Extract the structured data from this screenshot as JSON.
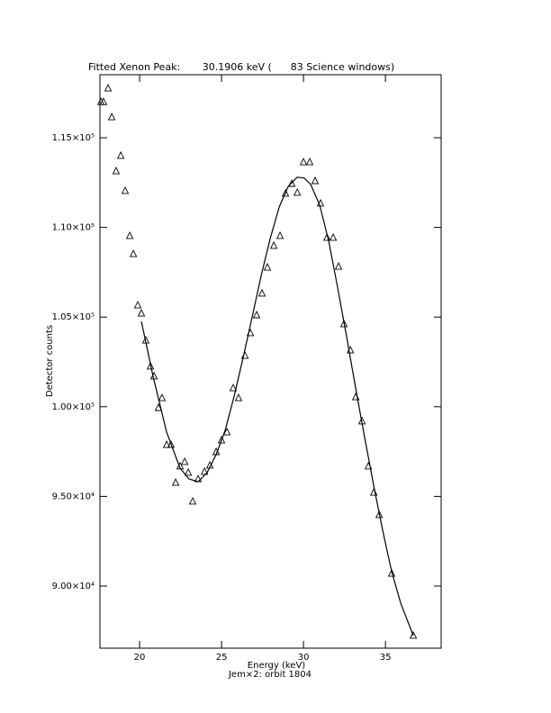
{
  "chart_data": {
    "type": "scatter",
    "title": "Fitted Xenon Peak:       30.1906 keV (      83 Science windows)",
    "x_label": "Energy (keV)",
    "subtitle": "Jem×2: orbit 1804",
    "y_label": "Detector counts",
    "xlim": [
      17.58,
      38.4
    ],
    "ylim": [
      86536,
      118514
    ],
    "xticks": [
      20,
      25,
      30,
      35
    ],
    "yticks": [
      {
        "value": 90000,
        "label": "9.00×10⁴"
      },
      {
        "value": 95000,
        "label": "9.50×10⁴"
      },
      {
        "value": 100000,
        "label": "1.00×10⁵"
      },
      {
        "value": 105000,
        "label": "1.05×10⁵"
      },
      {
        "value": 110000,
        "label": "1.10×10⁵"
      },
      {
        "value": 115000,
        "label": "1.15×10⁵"
      }
    ],
    "color": "#000000",
    "series": [
      {
        "style": "markers",
        "x": [
          17.64,
          17.8,
          18.08,
          18.3,
          18.57,
          18.85,
          19.12,
          19.4,
          19.62,
          19.89,
          20.11,
          20.38,
          20.66,
          20.88,
          21.15,
          21.37,
          21.65,
          21.92,
          22.2,
          22.47,
          22.75,
          22.97,
          23.24,
          23.57,
          23.96,
          24.29,
          24.67,
          25.0,
          25.33,
          25.71,
          26.04,
          26.43,
          26.76,
          27.14,
          27.47,
          27.8,
          28.19,
          28.57,
          28.9,
          29.29,
          29.62,
          30.0,
          30.38,
          30.71,
          31.04,
          31.43,
          31.81,
          32.14,
          32.47,
          32.86,
          33.19,
          33.57,
          33.96,
          34.29,
          34.62,
          35.38,
          36.7
        ],
        "values": [
          117000,
          117000,
          117760,
          116150,
          113140,
          114000,
          112040,
          109530,
          108520,
          105660,
          105210,
          103700,
          102250,
          101700,
          99940,
          100490,
          97880,
          97880,
          95770,
          96680,
          96930,
          96330,
          94720,
          95970,
          96380,
          96730,
          97480,
          98130,
          98580,
          101040,
          100490,
          102850,
          104110,
          105110,
          106320,
          107770,
          108980,
          109530,
          111890,
          112440,
          111940,
          113640,
          113640,
          112590,
          111340,
          109430,
          109430,
          107820,
          104610,
          103150,
          100540,
          99190,
          96680,
          95220,
          93970,
          90700,
          87240
        ]
      },
      {
        "style": "line",
        "x": [
          20.11,
          20.82,
          21.65,
          22.47,
          23.02,
          23.57,
          24.12,
          24.67,
          25.22,
          25.77,
          26.32,
          26.87,
          27.42,
          27.97,
          28.52,
          29.07,
          29.62,
          30.05,
          30.44,
          30.99,
          31.54,
          32.09,
          32.64,
          33.19,
          33.74,
          34.29,
          34.84,
          35.38,
          35.93,
          36.7
        ],
        "values": [
          104760,
          101700,
          98580,
          96570,
          95970,
          95820,
          96330,
          97330,
          98680,
          100590,
          102750,
          105010,
          107320,
          109380,
          111140,
          112290,
          112800,
          112750,
          112390,
          111240,
          109230,
          106620,
          103860,
          101000,
          98240,
          95570,
          93070,
          90810,
          89050,
          87240
        ]
      }
    ]
  }
}
